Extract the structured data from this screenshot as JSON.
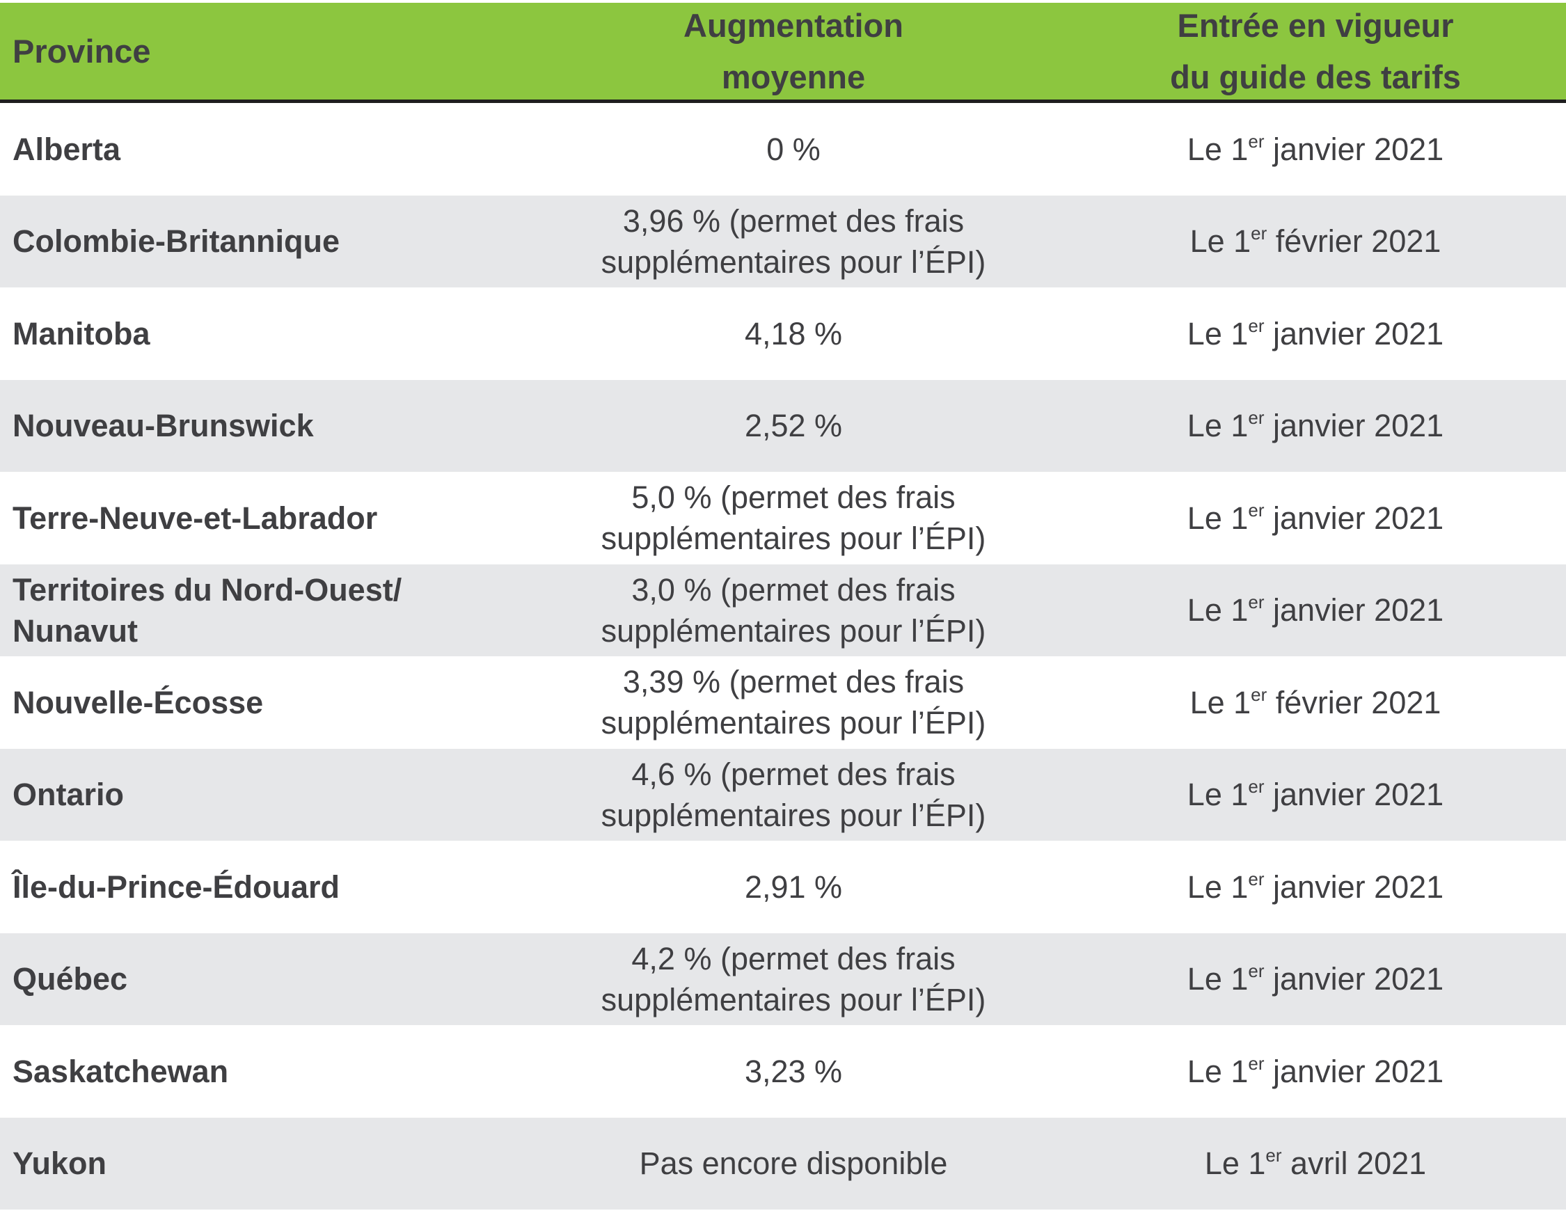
{
  "header": {
    "province": "Province",
    "increase_line1": "Augmentation",
    "increase_line2": "moyenne",
    "effective_line1": "Entrée en vigueur",
    "effective_line2": "du guide des tarifs"
  },
  "rows": [
    {
      "province_line1": "Alberta",
      "province_line2": "",
      "increase_line1": "0 %",
      "increase_line2": "",
      "date_prefix": "Le 1",
      "date_sup": "er",
      "date_rest": " janvier 2021"
    },
    {
      "province_line1": "Colombie-Britannique",
      "province_line2": "",
      "increase_line1": "3,96 % (permet des frais",
      "increase_line2": "supplémentaires pour l’ÉPI)",
      "date_prefix": "Le 1",
      "date_sup": "er",
      "date_rest": " février 2021"
    },
    {
      "province_line1": "Manitoba",
      "province_line2": "",
      "increase_line1": "4,18 %",
      "increase_line2": "",
      "date_prefix": "Le 1",
      "date_sup": "er",
      "date_rest": " janvier 2021"
    },
    {
      "province_line1": "Nouveau-Brunswick",
      "province_line2": "",
      "increase_line1": "2,52 %",
      "increase_line2": "",
      "date_prefix": "Le 1",
      "date_sup": "er",
      "date_rest": " janvier 2021"
    },
    {
      "province_line1": "Terre-Neuve-et-Labrador",
      "province_line2": "",
      "increase_line1": "5,0 % (permet des frais",
      "increase_line2": "supplémentaires pour l’ÉPI)",
      "date_prefix": "Le 1",
      "date_sup": "er",
      "date_rest": " janvier 2021"
    },
    {
      "province_line1": "Territoires du Nord-Ouest/",
      "province_line2": "Nunavut",
      "increase_line1": "3,0 % (permet des frais",
      "increase_line2": "supplémentaires pour l’ÉPI)",
      "date_prefix": "Le 1",
      "date_sup": "er",
      "date_rest": " janvier 2021"
    },
    {
      "province_line1": "Nouvelle-Écosse",
      "province_line2": "",
      "increase_line1": "3,39 % (permet des frais",
      "increase_line2": "supplémentaires pour l’ÉPI)",
      "date_prefix": "Le 1",
      "date_sup": "er",
      "date_rest": " février 2021"
    },
    {
      "province_line1": "Ontario",
      "province_line2": "",
      "increase_line1": "4,6 % (permet des frais",
      "increase_line2": "supplémentaires pour l’ÉPI)",
      "date_prefix": "Le 1",
      "date_sup": "er",
      "date_rest": " janvier 2021"
    },
    {
      "province_line1": "Île-du-Prince-Édouard",
      "province_line2": "",
      "increase_line1": "2,91 %",
      "increase_line2": "",
      "date_prefix": "Le 1",
      "date_sup": "er",
      "date_rest": " janvier 2021"
    },
    {
      "province_line1": "Québec",
      "province_line2": "",
      "increase_line1": "4,2 % (permet des frais",
      "increase_line2": "supplémentaires pour l’ÉPI)",
      "date_prefix": "Le 1",
      "date_sup": "er",
      "date_rest": " janvier 2021"
    },
    {
      "province_line1": "Saskatchewan",
      "province_line2": "",
      "increase_line1": "3,23 %",
      "increase_line2": "",
      "date_prefix": "Le 1",
      "date_sup": "er",
      "date_rest": " janvier 2021"
    },
    {
      "province_line1": "Yukon",
      "province_line2": "",
      "increase_line1": "Pas encore disponible",
      "increase_line2": "",
      "date_prefix": "Le 1",
      "date_sup": "er",
      "date_rest": " avril 2021"
    }
  ],
  "colors": {
    "header_bg": "#8cc63f",
    "alt_row_bg": "#e6e7e9",
    "text": "#3f3f42"
  }
}
